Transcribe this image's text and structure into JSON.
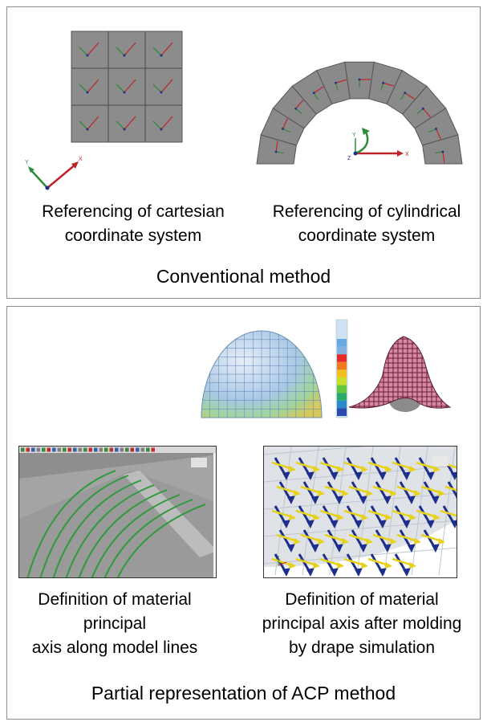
{
  "conventional": {
    "title": "Conventional method",
    "cartesian_caption": [
      "Referencing of cartesian",
      "coordinate system"
    ],
    "cylindrical_caption": [
      "Referencing of cylindrical",
      "coordinate system"
    ],
    "axis_x_label": "X",
    "axis_y_label": "Y",
    "axis_z_label": "Z"
  },
  "acp": {
    "title": "Partial representation of ACP method",
    "model_lines_caption": [
      "Definition of material",
      "principal",
      "axis along model lines"
    ],
    "drape_caption": [
      "Definition of material",
      "principal axis after molding",
      "by drape simulation"
    ]
  },
  "colors": {
    "mesh_gray": "#8a8a8a",
    "axis_red": "#c0242b",
    "axis_green": "#2e8b3a",
    "axis_blue": "#1d2e8c",
    "drape_yellow": "#e6d21a",
    "fabric_pink": "#c7667e"
  }
}
